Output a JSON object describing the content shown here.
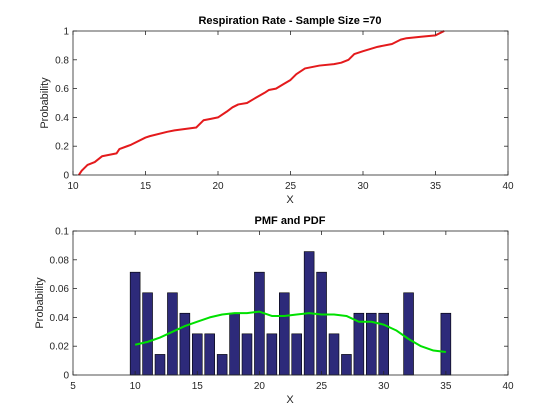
{
  "chart_data": [
    {
      "type": "line",
      "title": "Respiration Rate - Sample Size =70",
      "xlabel": "X",
      "ylabel": "Probability",
      "xlim": [
        10,
        40
      ],
      "ylim": [
        0,
        1
      ],
      "xticks": [
        10,
        15,
        20,
        25,
        30,
        35,
        40
      ],
      "yticks": [
        0,
        0.2,
        0.4,
        0.6,
        0.8,
        1
      ],
      "grid": false,
      "series": [
        {
          "color": "#e41a1c",
          "x": [
            10.4,
            10.6,
            11.0,
            11.5,
            12.0,
            13.0,
            13.2,
            14.0,
            15.0,
            15.3,
            16.5,
            17.0,
            18.5,
            19.0,
            19.5,
            20.0,
            20.6,
            21.0,
            21.4,
            22.0,
            22.5,
            23.2,
            23.5,
            24.0,
            24.5,
            25.0,
            25.4,
            26.0,
            27.0,
            28.0,
            28.5,
            29.0,
            29.4,
            30.0,
            31.0,
            32.0,
            32.6,
            33.0,
            34.0,
            35.0,
            35.6
          ],
          "y": [
            0.0,
            0.03,
            0.07,
            0.09,
            0.13,
            0.15,
            0.18,
            0.21,
            0.26,
            0.27,
            0.3,
            0.31,
            0.33,
            0.38,
            0.39,
            0.4,
            0.44,
            0.47,
            0.49,
            0.5,
            0.53,
            0.57,
            0.59,
            0.6,
            0.63,
            0.66,
            0.7,
            0.74,
            0.76,
            0.77,
            0.78,
            0.8,
            0.84,
            0.86,
            0.89,
            0.91,
            0.94,
            0.95,
            0.96,
            0.97,
            1.0
          ]
        }
      ]
    },
    {
      "type": "bar",
      "title": "PMF and PDF",
      "xlabel": "X",
      "ylabel": "Probability",
      "xlim": [
        5,
        40
      ],
      "ylim": [
        0,
        0.1
      ],
      "xticks": [
        5,
        10,
        15,
        20,
        25,
        30,
        35,
        40
      ],
      "yticks": [
        0,
        0.02,
        0.04,
        0.06,
        0.08,
        0.1
      ],
      "grid": false,
      "bar_color": "#2d2a7a",
      "x": [
        10,
        11,
        12,
        13,
        14,
        15,
        16,
        17,
        18,
        19,
        20,
        21,
        22,
        23,
        24,
        25,
        26,
        27,
        28,
        29,
        30,
        32,
        35
      ],
      "values": [
        0.0714,
        0.0571,
        0.0143,
        0.0571,
        0.0429,
        0.0286,
        0.0286,
        0.0143,
        0.0429,
        0.0286,
        0.0714,
        0.0286,
        0.0571,
        0.0286,
        0.0857,
        0.0714,
        0.0286,
        0.0143,
        0.0429,
        0.0429,
        0.0429,
        0.0571,
        0.0429
      ],
      "pdf_curve": {
        "color": "#00e000",
        "x": [
          10,
          11,
          12,
          13,
          14,
          15,
          16,
          17,
          18,
          19,
          20,
          21,
          22,
          23,
          24,
          25,
          26,
          27,
          28,
          29,
          30,
          31,
          32,
          33,
          34,
          35
        ],
        "y": [
          0.021,
          0.023,
          0.026,
          0.03,
          0.034,
          0.037,
          0.04,
          0.042,
          0.043,
          0.043,
          0.044,
          0.041,
          0.041,
          0.042,
          0.043,
          0.042,
          0.042,
          0.041,
          0.037,
          0.037,
          0.035,
          0.031,
          0.025,
          0.02,
          0.017,
          0.016
        ]
      }
    }
  ]
}
